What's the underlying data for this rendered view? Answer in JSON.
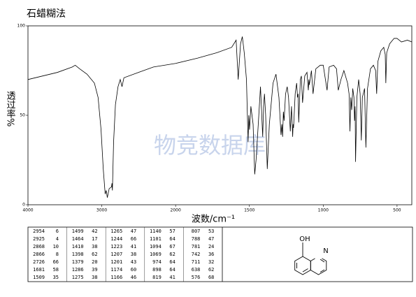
{
  "chart_data": {
    "type": "line",
    "title": "石蜡糊法",
    "xlabel": "波数/cm⁻¹",
    "ylabel": "透过率%",
    "watermark": "物竞数据库",
    "color": "#000000",
    "xlim": [
      4000,
      400
    ],
    "x_scale_break": 2000,
    "xticks": [
      4000,
      3000,
      2000,
      1500,
      1000,
      500
    ],
    "ylim": [
      0,
      100
    ],
    "yticks": [
      0,
      50,
      100
    ],
    "x": [
      4000,
      3800,
      3600,
      3400,
      3360,
      3300,
      3200,
      3100,
      3050,
      3010,
      2980,
      2954,
      2940,
      2925,
      2900,
      2868,
      2862,
      2856,
      2840,
      2815,
      2780,
      2750,
      2726,
      2700,
      2500,
      2300,
      2000,
      1850,
      1720,
      1620,
      1590,
      1576,
      1560,
      1548,
      1535,
      1520,
      1509,
      1504,
      1499,
      1490,
      1475,
      1464,
      1455,
      1440,
      1425,
      1410,
      1404,
      1398,
      1390,
      1379,
      1365,
      1340,
      1320,
      1300,
      1286,
      1280,
      1275,
      1270,
      1265,
      1255,
      1244,
      1235,
      1223,
      1215,
      1207,
      1204,
      1201,
      1190,
      1180,
      1174,
      1170,
      1166,
      1155,
      1148,
      1140,
      1125,
      1110,
      1101,
      1097,
      1094,
      1080,
      1069,
      1050,
      1020,
      1000,
      974,
      960,
      930,
      910,
      898,
      880,
      860,
      835,
      825,
      819,
      813,
      807,
      800,
      792,
      788,
      784,
      781,
      772,
      760,
      750,
      742,
      735,
      720,
      711,
      700,
      680,
      660,
      645,
      638,
      630,
      610,
      590,
      580,
      576,
      570,
      550,
      520,
      500,
      470,
      430,
      400
    ],
    "values": [
      70,
      72,
      74,
      77,
      78,
      76,
      73,
      68,
      60,
      42,
      20,
      6,
      8,
      4,
      9,
      10,
      12,
      8,
      35,
      56,
      66,
      70,
      66,
      71,
      74,
      77,
      79,
      82,
      85,
      88,
      92,
      70,
      90,
      94,
      85,
      70,
      35,
      50,
      42,
      55,
      45,
      17,
      25,
      45,
      66,
      38,
      55,
      62,
      50,
      20,
      45,
      68,
      73,
      60,
      39,
      45,
      38,
      52,
      47,
      62,
      66,
      60,
      41,
      55,
      38,
      45,
      43,
      62,
      68,
      60,
      62,
      46,
      70,
      72,
      57,
      72,
      74,
      64,
      70,
      67,
      75,
      62,
      76,
      78,
      78,
      64,
      77,
      78,
      76,
      64,
      70,
      75,
      68,
      62,
      41,
      60,
      53,
      65,
      60,
      47,
      55,
      24,
      60,
      70,
      62,
      36,
      60,
      65,
      32,
      65,
      76,
      78,
      75,
      62,
      80,
      86,
      88,
      84,
      68,
      85,
      90,
      93,
      93,
      91,
      92,
      91
    ]
  },
  "peak_table": {
    "rows": [
      [
        2954,
        6,
        1499,
        42,
        1265,
        47,
        1140,
        57,
        807,
        53
      ],
      [
        2925,
        4,
        1464,
        17,
        1244,
        66,
        1101,
        64,
        788,
        47
      ],
      [
        2868,
        10,
        1410,
        38,
        1223,
        41,
        1094,
        67,
        781,
        24
      ],
      [
        2866,
        8,
        1398,
        62,
        1207,
        38,
        1069,
        62,
        742,
        36
      ],
      [
        2726,
        66,
        1379,
        20,
        1201,
        43,
        974,
        64,
        711,
        32
      ],
      [
        1681,
        58,
        1286,
        39,
        1174,
        60,
        898,
        64,
        638,
        62
      ],
      [
        1509,
        35,
        1275,
        38,
        1166,
        46,
        819,
        41,
        576,
        68
      ]
    ]
  },
  "structure": {
    "labels": [
      "OH",
      "N"
    ]
  }
}
